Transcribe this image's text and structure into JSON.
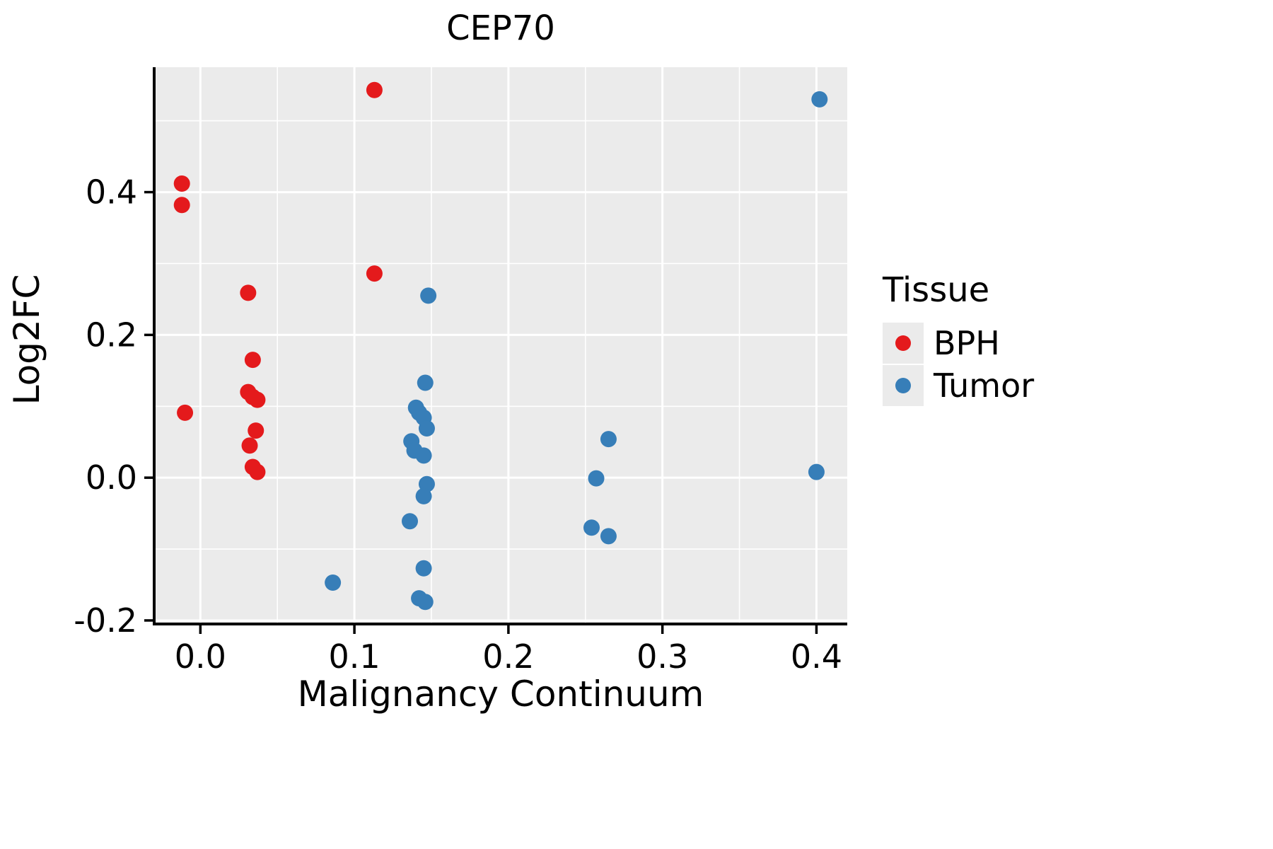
{
  "chart_data": {
    "type": "scatter",
    "title": "CEP70",
    "xlabel": "Malignancy Continuum",
    "ylabel": "Log2FC",
    "xlim": [
      -0.03,
      0.42
    ],
    "ylim": [
      -0.205,
      0.575
    ],
    "x_ticks": [
      0.0,
      0.1,
      0.2,
      0.3,
      0.4
    ],
    "x_tick_labels": [
      "0.0",
      "0.1",
      "0.2",
      "0.3",
      "0.4"
    ],
    "y_ticks": [
      -0.2,
      0.0,
      0.2,
      0.4
    ],
    "y_tick_labels": [
      "-0.2",
      "0.0",
      "0.2",
      "0.4"
    ],
    "x_minor_ticks": [
      0.05,
      0.15,
      0.25,
      0.35
    ],
    "y_minor_ticks": [
      -0.1,
      0.1,
      0.3,
      0.5
    ],
    "grid": true,
    "panel_bg": "#EBEBEB",
    "grid_color": "#FFFFFF",
    "axis_color": "#000000",
    "point_radius": 11.5,
    "series": [
      {
        "name": "BPH",
        "color": "#E41A1C",
        "points": [
          [
            -0.012,
            0.412
          ],
          [
            -0.012,
            0.382
          ],
          [
            -0.01,
            0.091
          ],
          [
            0.031,
            0.259
          ],
          [
            0.113,
            0.543
          ],
          [
            0.113,
            0.286
          ],
          [
            0.034,
            0.165
          ],
          [
            0.031,
            0.12
          ],
          [
            0.034,
            0.113
          ],
          [
            0.037,
            0.109
          ],
          [
            0.036,
            0.066
          ],
          [
            0.032,
            0.045
          ],
          [
            0.034,
            0.015
          ],
          [
            0.037,
            0.008
          ]
        ]
      },
      {
        "name": "Tumor",
        "color": "#377EB8",
        "points": [
          [
            0.402,
            0.53
          ],
          [
            0.148,
            0.255
          ],
          [
            0.146,
            0.133
          ],
          [
            0.14,
            0.098
          ],
          [
            0.142,
            0.091
          ],
          [
            0.145,
            0.084
          ],
          [
            0.147,
            0.069
          ],
          [
            0.137,
            0.051
          ],
          [
            0.139,
            0.038
          ],
          [
            0.145,
            0.031
          ],
          [
            0.147,
            -0.009
          ],
          [
            0.145,
            -0.026
          ],
          [
            0.136,
            -0.061
          ],
          [
            0.145,
            -0.127
          ],
          [
            0.142,
            -0.169
          ],
          [
            0.146,
            -0.174
          ],
          [
            0.086,
            -0.147
          ],
          [
            0.257,
            -0.001
          ],
          [
            0.265,
            0.054
          ],
          [
            0.254,
            -0.07
          ],
          [
            0.265,
            -0.082
          ],
          [
            0.4,
            0.008
          ]
        ]
      }
    ],
    "legend_position": "right"
  },
  "legend": {
    "title": "Tissue",
    "items": [
      {
        "label": "BPH",
        "color": "#E41A1C"
      },
      {
        "label": "Tumor",
        "color": "#377EB8"
      }
    ]
  }
}
